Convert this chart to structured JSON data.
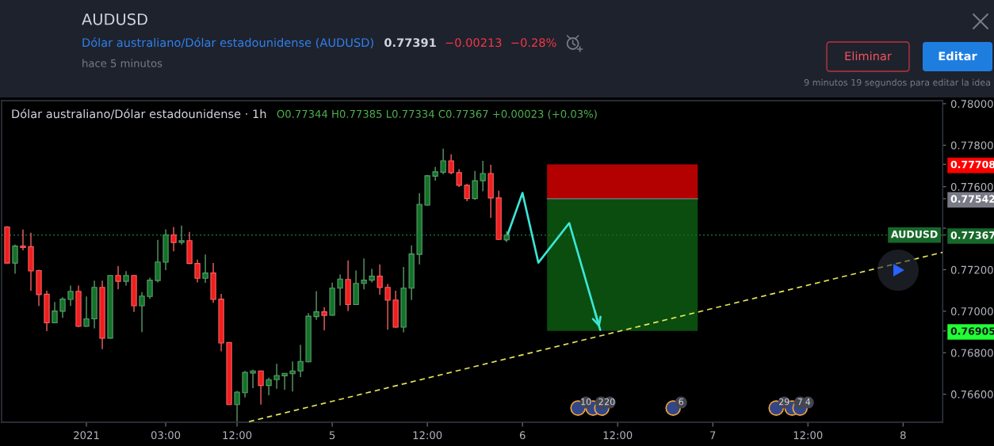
{
  "chart_data": {
    "type": "candlestick",
    "title": "AUDUSD",
    "subtitle": "Dólar australiano/Dólar estadounidense (AUDUSD)",
    "x": [
      "2021-01-03T07:00",
      "2021-01-03T08:00",
      "2021-01-03T09:00",
      "2021-01-03T10:00",
      "2021-01-03T11:00",
      "2021-01-03T12:00",
      "2021-01-03T13:00",
      "2021-01-03T14:00",
      "2021-01-03T15:00",
      "2021-01-03T16:00",
      "2021-01-03T17:00",
      "2021-01-03T18:00",
      "2021-01-03T19:00",
      "2021-01-03T20:00",
      "2021-01-03T21:00",
      "2021-01-03T22:00",
      "2021-01-03T23:00",
      "2021-01-04T00:00",
      "2021-01-04T01:00",
      "2021-01-04T02:00",
      "2021-01-04T03:00",
      "2021-01-04T04:00",
      "2021-01-04T05:00",
      "2021-01-04T06:00",
      "2021-01-04T07:00",
      "2021-01-04T08:00",
      "2021-01-04T09:00",
      "2021-01-04T10:00",
      "2021-01-04T11:00",
      "2021-01-04T12:00",
      "2021-01-04T13:00",
      "2021-01-04T14:00",
      "2021-01-04T15:00",
      "2021-01-04T16:00",
      "2021-01-04T17:00",
      "2021-01-04T18:00",
      "2021-01-04T19:00",
      "2021-01-04T20:00",
      "2021-01-04T21:00",
      "2021-01-04T22:00",
      "2021-01-04T23:00",
      "2021-01-05T00:00",
      "2021-01-05T01:00",
      "2021-01-05T02:00",
      "2021-01-05T03:00",
      "2021-01-05T04:00",
      "2021-01-05T05:00",
      "2021-01-05T06:00",
      "2021-01-05T07:00",
      "2021-01-05T08:00",
      "2021-01-05T09:00",
      "2021-01-05T10:00",
      "2021-01-05T11:00",
      "2021-01-05T12:00",
      "2021-01-05T13:00",
      "2021-01-05T14:00",
      "2021-01-05T15:00",
      "2021-01-05T16:00",
      "2021-01-05T17:00",
      "2021-01-05T18:00",
      "2021-01-05T19:00",
      "2021-01-05T20:00",
      "2021-01-05T21:00",
      "2021-01-05T22:00"
    ],
    "ohlc": [
      [
        0.77406,
        0.7741,
        0.7723,
        0.77232
      ],
      [
        0.77232,
        0.77321,
        0.77181,
        0.77314
      ],
      [
        0.77314,
        0.77394,
        0.77293,
        0.77307
      ],
      [
        0.77311,
        0.77378,
        0.77099,
        0.77194
      ],
      [
        0.77196,
        0.772,
        0.77025,
        0.7708
      ],
      [
        0.77082,
        0.77099,
        0.76904,
        0.76944
      ],
      [
        0.76944,
        0.77044,
        0.76942,
        0.77001
      ],
      [
        0.77,
        0.77067,
        0.76968,
        0.77058
      ],
      [
        0.77057,
        0.77124,
        0.77025,
        0.77096
      ],
      [
        0.77096,
        0.77124,
        0.76923,
        0.76927
      ],
      [
        0.76927,
        0.77071,
        0.76925,
        0.76963
      ],
      [
        0.76963,
        0.77147,
        0.76917,
        0.77115
      ],
      [
        0.77115,
        0.77147,
        0.76817,
        0.7687
      ],
      [
        0.7687,
        0.77174,
        0.76868,
        0.77172
      ],
      [
        0.77172,
        0.77218,
        0.77105,
        0.77144
      ],
      [
        0.77144,
        0.77193,
        0.77124,
        0.77172
      ],
      [
        0.77172,
        0.77175,
        0.76997,
        0.77026
      ],
      [
        0.77026,
        0.77092,
        0.76899,
        0.77073
      ],
      [
        0.77071,
        0.77162,
        0.7706,
        0.7715
      ],
      [
        0.77148,
        0.77344,
        0.77139,
        0.77237
      ],
      [
        0.77236,
        0.77395,
        0.77198,
        0.77368
      ],
      [
        0.77368,
        0.77406,
        0.77289,
        0.77331
      ],
      [
        0.77332,
        0.77413,
        0.77321,
        0.7734
      ],
      [
        0.7734,
        0.77382,
        0.77228,
        0.7723
      ],
      [
        0.7723,
        0.77249,
        0.77139,
        0.77159
      ],
      [
        0.77159,
        0.77273,
        0.77137,
        0.77184
      ],
      [
        0.77184,
        0.77232,
        0.77041,
        0.77057
      ],
      [
        0.77058,
        0.77083,
        0.76807,
        0.76847
      ],
      [
        0.76849,
        0.76851,
        0.76548,
        0.7655
      ],
      [
        0.7655,
        0.76616,
        0.76469,
        0.7661
      ],
      [
        0.76607,
        0.76712,
        0.76584,
        0.76705
      ],
      [
        0.76702,
        0.76718,
        0.76629,
        0.76712
      ],
      [
        0.76712,
        0.76714,
        0.7655,
        0.76642
      ],
      [
        0.76642,
        0.7668,
        0.76595,
        0.7667
      ],
      [
        0.7667,
        0.76747,
        0.76626,
        0.7669
      ],
      [
        0.76689,
        0.76702,
        0.76622,
        0.76701
      ],
      [
        0.76699,
        0.76758,
        0.76613,
        0.76712
      ],
      [
        0.76712,
        0.76838,
        0.76683,
        0.76758
      ],
      [
        0.76756,
        0.76991,
        0.76754,
        0.76976
      ],
      [
        0.76974,
        0.77097,
        0.76958,
        0.76997
      ],
      [
        0.76997,
        0.7702,
        0.76908,
        0.7698
      ],
      [
        0.76981,
        0.77138,
        0.76979,
        0.77111
      ],
      [
        0.77111,
        0.77177,
        0.77027,
        0.77155
      ],
      [
        0.77153,
        0.77245,
        0.77,
        0.77032
      ],
      [
        0.77032,
        0.77196,
        0.7703,
        0.77134
      ],
      [
        0.77134,
        0.77254,
        0.77105,
        0.7715
      ],
      [
        0.7715,
        0.77204,
        0.77139,
        0.77169
      ],
      [
        0.77169,
        0.77226,
        0.7708,
        0.77114
      ],
      [
        0.77115,
        0.77131,
        0.76911,
        0.77053
      ],
      [
        0.77054,
        0.77099,
        0.7692,
        0.76923
      ],
      [
        0.76923,
        0.77213,
        0.76898,
        0.77111
      ],
      [
        0.77111,
        0.77317,
        0.77054,
        0.77276
      ],
      [
        0.77274,
        0.77569,
        0.77226,
        0.77515
      ],
      [
        0.77511,
        0.77657,
        0.77509,
        0.77653
      ],
      [
        0.77651,
        0.77695,
        0.77629,
        0.77672
      ],
      [
        0.7767,
        0.77784,
        0.7766,
        0.77725
      ],
      [
        0.77725,
        0.77756,
        0.7766,
        0.77668
      ],
      [
        0.77668,
        0.77685,
        0.77599,
        0.77607
      ],
      [
        0.77607,
        0.77613,
        0.7753,
        0.77543
      ],
      [
        0.77543,
        0.77676,
        0.77537,
        0.77629
      ],
      [
        0.77629,
        0.77725,
        0.77578,
        0.77664
      ],
      [
        0.77664,
        0.77706,
        0.7745,
        0.77546
      ],
      [
        0.77546,
        0.77581,
        0.77344,
        0.77346
      ],
      [
        0.77344,
        0.77385,
        0.77334,
        0.77367
      ]
    ],
    "colors": [
      "#f01e1e",
      "#13722a",
      "#f01e1e",
      "#f01e1e",
      "#f01e1e",
      "#f01e1e",
      "#13722a",
      "#13722a",
      "#13722a",
      "#f01e1e",
      "#13722a",
      "#13722a",
      "#f01e1e",
      "#13722a",
      "#f01e1e",
      "#13722a",
      "#f01e1e",
      "#13722a",
      "#13722a",
      "#13722a",
      "#13722a",
      "#f01e1e",
      "#13722a",
      "#f01e1e",
      "#f01e1e",
      "#13722a",
      "#f01e1e",
      "#f01e1e",
      "#f01e1e",
      "#13722a",
      "#13722a",
      "#13722a",
      "#f01e1e",
      "#13722a",
      "#13722a",
      "#13722a",
      "#13722a",
      "#13722a",
      "#13722a",
      "#13722a",
      "#f01e1e",
      "#13722a",
      "#13722a",
      "#f01e1e",
      "#13722a",
      "#13722a",
      "#13722a",
      "#f01e1e",
      "#f01e1e",
      "#f01e1e",
      "#13722a",
      "#13722a",
      "#13722a",
      "#13722a",
      "#13722a",
      "#13722a",
      "#f01e1e",
      "#f01e1e",
      "#f01e1e",
      "#13722a",
      "#13722a",
      "#f01e1e",
      "#f01e1e",
      "#13722a"
    ],
    "series": [
      {
        "type": "line",
        "x": [
          "2021-01-06T03:06",
          "2021-01-06T22:06"
        ],
        "values": [
          null,
          null
        ],
        "lower": [
          0.77542,
          0.77542
        ],
        "upper": [
          0.77708,
          0.77708
        ],
        "color": "#b30000"
      },
      {
        "type": "line",
        "x": [
          "2021-01-06T03:06",
          "2021-01-06T22:06"
        ],
        "values": [
          null,
          null
        ],
        "lower": [
          0.76905,
          0.76905
        ],
        "upper": [
          0.77542,
          0.77542
        ],
        "color": "#0a4d0f"
      },
      {
        "type": "line",
        "x": [
          "2021-01-06T03:06",
          "2021-01-06T22:06"
        ],
        "values": [
          0.77542,
          0.77542
        ],
        "color": "#787b86",
        "line_style": "solid"
      },
      {
        "type": "line",
        "x": [
          "2021-01-04T13:30",
          "2021-01-08T05:00"
        ],
        "values": [
          0.76468,
          0.77284
        ],
        "color": "#e6e65a",
        "line_style": "dashed"
      },
      {
        "type": "line",
        "x": [
          "2021-01-05T21:54",
          "2021-01-06T00:00",
          "2021-01-06T02:00",
          "2021-01-06T05:54",
          "2021-01-06T09:48"
        ],
        "values": [
          0.77345,
          0.7757,
          0.77234,
          0.77425,
          0.7691
        ],
        "color": "#3ce6d6",
        "line_style": "solid"
      }
    ],
    "xlim": [
      "2021-01-03T06:18",
      "2021-01-08T05:00"
    ],
    "ylim": [
      0.76465,
      0.78015
    ],
    "xticks": [
      {
        "value": "2021-01-03T17:00",
        "label": "2021"
      },
      {
        "value": "2021-01-04T03:00",
        "label": "03:00"
      },
      {
        "value": "2021-01-04T12:00",
        "label": "12:00"
      },
      {
        "value": "2021-01-05",
        "label": "5"
      },
      {
        "value": "2021-01-05T12:00",
        "label": "12:00"
      },
      {
        "value": "2021-01-06",
        "label": "6"
      },
      {
        "value": "2021-01-06T12:00",
        "label": "12:00"
      },
      {
        "value": "2021-01-07",
        "label": "7"
      },
      {
        "value": "2021-01-07T12:00",
        "label": "12:00"
      },
      {
        "value": "2021-01-08",
        "label": "8"
      }
    ],
    "yticks": [
      {
        "value": 0.766,
        "label": "0.76600"
      },
      {
        "value": 0.768,
        "label": "0.76800"
      },
      {
        "value": 0.76905,
        "label": "0.76905"
      },
      {
        "value": 0.77,
        "label": "0.77000"
      },
      {
        "value": 0.772,
        "label": "0.77200"
      },
      {
        "value": 0.77367,
        "label": "0.77367"
      },
      {
        "value": 0.774,
        "label": null
      },
      {
        "value": 0.77542,
        "label": "0.77542"
      },
      {
        "value": 0.776,
        "label": "0.77600"
      },
      {
        "value": 0.77708,
        "label": "0.77708"
      },
      {
        "value": 0.778,
        "label": "0.77800"
      },
      {
        "value": 0.78,
        "label": "0.78000"
      }
    ],
    "ref_lines": [
      {
        "axis": "y",
        "value": 0.77367,
        "label": "AUDUSD",
        "color": "#17692a",
        "line_style": "dotted"
      }
    ],
    "annotations": [
      "hace 5 minutos",
      "0.77391",
      "−0.00213",
      "−0.28%",
      "Eliminar",
      "Editar",
      "9 minutos 19 segundos para editar la idea",
      "Dólar australiano/Dólar estadounidense · 1h",
      "O0.77344 H0.77385 L0.77334 C0.77367 +0.00023 (+0.03%)",
      {
        "text": "10",
        "x": "2021-01-06T08:00",
        "y": 0.7656
      },
      {
        "text": "2",
        "x": "2021-01-06T09:54",
        "y": 0.7656
      },
      {
        "text": "20",
        "x": "2021-01-06T11:00",
        "y": 0.7656
      },
      {
        "text": "6",
        "x": "2021-01-06T20:00",
        "y": 0.7656
      },
      {
        "text": "29",
        "x": "2021-01-07T09:00",
        "y": 0.7656
      },
      {
        "text": "7",
        "x": "2021-01-07T11:00",
        "y": 0.7656
      },
      {
        "text": "4",
        "x": "2021-01-07T12:00",
        "y": 0.7656
      }
    ]
  }
}
